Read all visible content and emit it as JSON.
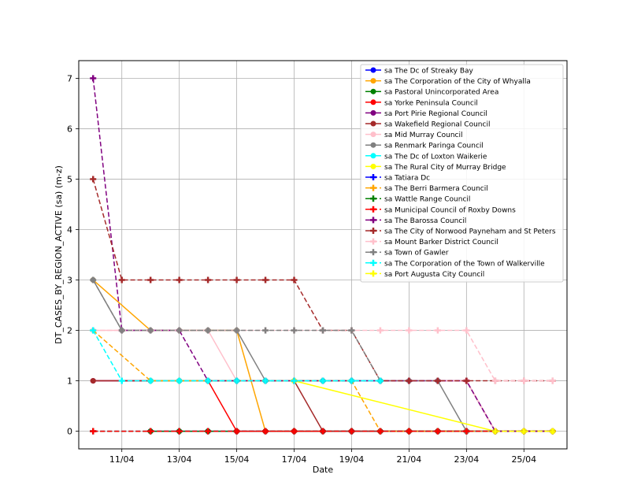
{
  "chart_data": {
    "type": "line",
    "xlabel": "Date",
    "ylabel": "DT_CASES_BY_REGION_ACTIVE (sa) (m-z)",
    "grid": true,
    "legend_position": "top-right",
    "x_range": [
      "2020-04-09T12:00",
      "2020-04-26T12:00"
    ],
    "y_range": [
      -0.35,
      7.35
    ],
    "x_ticks": [
      {
        "date": "2020-04-11",
        "label": "11/04"
      },
      {
        "date": "2020-04-13",
        "label": "13/04"
      },
      {
        "date": "2020-04-15",
        "label": "15/04"
      },
      {
        "date": "2020-04-17",
        "label": "17/04"
      },
      {
        "date": "2020-04-19",
        "label": "19/04"
      },
      {
        "date": "2020-04-21",
        "label": "21/04"
      },
      {
        "date": "2020-04-23",
        "label": "23/04"
      },
      {
        "date": "2020-04-25",
        "label": "25/04"
      }
    ],
    "y_ticks": [
      0,
      1,
      2,
      3,
      4,
      5,
      6,
      7
    ],
    "series": [
      {
        "name": "sa The Dc of Streaky Bay",
        "color": "#0000ff",
        "dash": false,
        "marker": "circle",
        "x": [
          "2020-04-12",
          "2020-04-13",
          "2020-04-14",
          "2020-04-15",
          "2020-04-16",
          "2020-04-17",
          "2020-04-18",
          "2020-04-19",
          "2020-04-20",
          "2020-04-21",
          "2020-04-22",
          "2020-04-23",
          "2020-04-24",
          "2020-04-25",
          "2020-04-26"
        ],
        "y": [
          0,
          0,
          0,
          0,
          0,
          0,
          0,
          0,
          0,
          0,
          0,
          0,
          0,
          0,
          0
        ]
      },
      {
        "name": "sa The Corporation of the City of Whyalla",
        "color": "#ffa500",
        "dash": false,
        "marker": "circle",
        "x": [
          "2020-04-10",
          "2020-04-12",
          "2020-04-13",
          "2020-04-14",
          "2020-04-15",
          "2020-04-16",
          "2020-04-17",
          "2020-04-18",
          "2020-04-19",
          "2020-04-20",
          "2020-04-21",
          "2020-04-22",
          "2020-04-23",
          "2020-04-24",
          "2020-04-25",
          "2020-04-26"
        ],
        "y": [
          3,
          2,
          2,
          2,
          2,
          0,
          0,
          0,
          0,
          0,
          0,
          0,
          0,
          0,
          0,
          0
        ]
      },
      {
        "name": "sa Pastoral Unincorporated Area",
        "color": "#008000",
        "dash": false,
        "marker": "circle",
        "x": [
          "2020-04-12",
          "2020-04-13",
          "2020-04-14",
          "2020-04-15",
          "2020-04-16",
          "2020-04-17",
          "2020-04-18",
          "2020-04-19",
          "2020-04-20",
          "2020-04-21",
          "2020-04-22",
          "2020-04-23",
          "2020-04-24",
          "2020-04-25",
          "2020-04-26"
        ],
        "y": [
          0,
          0,
          0,
          0,
          0,
          0,
          0,
          0,
          0,
          0,
          0,
          0,
          0,
          0,
          0
        ]
      },
      {
        "name": "sa Yorke Peninsula Council",
        "color": "#ff0000",
        "dash": false,
        "marker": "circle",
        "x": [
          "2020-04-10",
          "2020-04-12",
          "2020-04-13",
          "2020-04-14",
          "2020-04-15",
          "2020-04-16",
          "2020-04-17",
          "2020-04-18",
          "2020-04-19",
          "2020-04-20",
          "2020-04-21",
          "2020-04-22",
          "2020-04-23",
          "2020-04-24",
          "2020-04-25",
          "2020-04-26"
        ],
        "y": [
          1,
          1,
          1,
          1,
          0,
          0,
          0,
          0,
          0,
          0,
          0,
          0,
          0,
          0,
          0,
          0
        ]
      },
      {
        "name": "sa Port Pirie Regional Council",
        "color": "#800080",
        "dash": false,
        "marker": "circle",
        "x": [
          "2020-04-10",
          "2020-04-12",
          "2020-04-13",
          "2020-04-14",
          "2020-04-15",
          "2020-04-16",
          "2020-04-17",
          "2020-04-18",
          "2020-04-19",
          "2020-04-20",
          "2020-04-21",
          "2020-04-22",
          "2020-04-23",
          "2020-04-24",
          "2020-04-25",
          "2020-04-26"
        ],
        "y": [
          1,
          1,
          1,
          1,
          1,
          1,
          1,
          1,
          1,
          1,
          1,
          1,
          1,
          0,
          0,
          0
        ]
      },
      {
        "name": "sa Wakefield Regional Council",
        "color": "#a52a2a",
        "dash": false,
        "marker": "circle",
        "x": [
          "2020-04-10",
          "2020-04-12",
          "2020-04-13",
          "2020-04-14",
          "2020-04-15",
          "2020-04-16",
          "2020-04-17",
          "2020-04-18",
          "2020-04-19",
          "2020-04-20",
          "2020-04-21",
          "2020-04-22",
          "2020-04-23",
          "2020-04-24",
          "2020-04-25",
          "2020-04-26"
        ],
        "y": [
          1,
          1,
          1,
          1,
          1,
          1,
          1,
          0,
          0,
          0,
          0,
          0,
          0,
          0,
          0,
          0
        ]
      },
      {
        "name": "sa Mid Murray Council",
        "color": "#ffc0cb",
        "dash": false,
        "marker": "circle",
        "x": [
          "2020-04-10",
          "2020-04-12",
          "2020-04-13",
          "2020-04-14",
          "2020-04-15",
          "2020-04-16",
          "2020-04-17",
          "2020-04-18",
          "2020-04-19",
          "2020-04-20",
          "2020-04-21",
          "2020-04-22",
          "2020-04-23",
          "2020-04-24",
          "2020-04-25",
          "2020-04-26"
        ],
        "y": [
          2,
          2,
          2,
          2,
          1,
          1,
          1,
          1,
          1,
          1,
          1,
          1,
          1,
          0,
          0,
          0
        ]
      },
      {
        "name": "sa Renmark Paringa Council",
        "color": "#808080",
        "dash": false,
        "marker": "circle",
        "x": [
          "2020-04-10",
          "2020-04-11",
          "2020-04-12",
          "2020-04-13",
          "2020-04-14",
          "2020-04-15",
          "2020-04-16",
          "2020-04-17",
          "2020-04-18",
          "2020-04-19",
          "2020-04-20",
          "2020-04-21",
          "2020-04-22",
          "2020-04-23",
          "2020-04-24",
          "2020-04-25",
          "2020-04-26"
        ],
        "y": [
          3,
          2,
          2,
          2,
          2,
          2,
          1,
          1,
          1,
          1,
          1,
          1,
          1,
          0,
          0,
          0,
          0
        ]
      },
      {
        "name": "sa The Dc of Loxton Waikerie",
        "color": "#00ffff",
        "dash": false,
        "marker": "circle",
        "x": [
          "2020-04-12",
          "2020-04-13",
          "2020-04-14",
          "2020-04-15",
          "2020-04-16",
          "2020-04-17",
          "2020-04-18",
          "2020-04-19",
          "2020-04-20"
        ],
        "y": [
          1,
          1,
          1,
          1,
          1,
          1,
          1,
          1,
          1
        ]
      },
      {
        "name": "sa The Rural City of Murray Bridge",
        "color": "#ffff00",
        "dash": false,
        "marker": "circle",
        "x": [
          "2020-04-17",
          "2020-04-24",
          "2020-04-25",
          "2020-04-26"
        ],
        "y": [
          1,
          0,
          0,
          0
        ]
      },
      {
        "name": "sa Tatiara Dc",
        "color": "#0000ff",
        "dash": true,
        "marker": "plus",
        "x": [
          "2020-04-10",
          "2020-04-12",
          "2020-04-13",
          "2020-04-14",
          "2020-04-15",
          "2020-04-16",
          "2020-04-17",
          "2020-04-18",
          "2020-04-19",
          "2020-04-20",
          "2020-04-21",
          "2020-04-22",
          "2020-04-23",
          "2020-04-24",
          "2020-04-25",
          "2020-04-26"
        ],
        "y": [
          0,
          0,
          0,
          0,
          0,
          0,
          0,
          0,
          0,
          0,
          0,
          0,
          0,
          0,
          0,
          0
        ]
      },
      {
        "name": "sa The Berri Barmera Council",
        "color": "#ffa500",
        "dash": true,
        "marker": "plus",
        "x": [
          "2020-04-10",
          "2020-04-12",
          "2020-04-13",
          "2020-04-14",
          "2020-04-15",
          "2020-04-16",
          "2020-04-17",
          "2020-04-18",
          "2020-04-19",
          "2020-04-20",
          "2020-04-21",
          "2020-04-22",
          "2020-04-23",
          "2020-04-24",
          "2020-04-25",
          "2020-04-26"
        ],
        "y": [
          2,
          1,
          1,
          1,
          1,
          1,
          1,
          1,
          1,
          0,
          0,
          0,
          0,
          0,
          0,
          0
        ]
      },
      {
        "name": "sa Wattle Range Council",
        "color": "#008000",
        "dash": true,
        "marker": "plus",
        "x": [
          "2020-04-10",
          "2020-04-12",
          "2020-04-13",
          "2020-04-14",
          "2020-04-15",
          "2020-04-16",
          "2020-04-17",
          "2020-04-18",
          "2020-04-19",
          "2020-04-20",
          "2020-04-21",
          "2020-04-22",
          "2020-04-23",
          "2020-04-24",
          "2020-04-25",
          "2020-04-26"
        ],
        "y": [
          0,
          0,
          0,
          0,
          0,
          0,
          0,
          0,
          0,
          0,
          0,
          0,
          0,
          0,
          0,
          0
        ]
      },
      {
        "name": "sa Municipal Council of Roxby Downs",
        "color": "#ff0000",
        "dash": true,
        "marker": "plus",
        "x": [
          "2020-04-10",
          "2020-04-12",
          "2020-04-13",
          "2020-04-14",
          "2020-04-15",
          "2020-04-16",
          "2020-04-17",
          "2020-04-18",
          "2020-04-19",
          "2020-04-20",
          "2020-04-21",
          "2020-04-22",
          "2020-04-23",
          "2020-04-24",
          "2020-04-25",
          "2020-04-26"
        ],
        "y": [
          0,
          0,
          0,
          0,
          0,
          0,
          0,
          0,
          0,
          0,
          0,
          0,
          0,
          0,
          0,
          0
        ]
      },
      {
        "name": "sa The Barossa Council",
        "color": "#800080",
        "dash": true,
        "marker": "plus",
        "x": [
          "2020-04-10",
          "2020-04-11",
          "2020-04-12",
          "2020-04-13",
          "2020-04-14",
          "2020-04-15",
          "2020-04-16",
          "2020-04-17",
          "2020-04-18",
          "2020-04-19",
          "2020-04-20",
          "2020-04-21",
          "2020-04-22",
          "2020-04-23",
          "2020-04-24",
          "2020-04-25",
          "2020-04-26"
        ],
        "y": [
          7,
          2,
          2,
          2,
          1,
          1,
          1,
          1,
          1,
          1,
          1,
          1,
          1,
          1,
          0,
          0,
          0
        ]
      },
      {
        "name": "sa The City of Norwood Payneham and St Peters",
        "color": "#a52a2a",
        "dash": true,
        "marker": "plus",
        "x": [
          "2020-04-10",
          "2020-04-11",
          "2020-04-12",
          "2020-04-13",
          "2020-04-14",
          "2020-04-15",
          "2020-04-16",
          "2020-04-17",
          "2020-04-18",
          "2020-04-19",
          "2020-04-20",
          "2020-04-21",
          "2020-04-22",
          "2020-04-23",
          "2020-04-24",
          "2020-04-25",
          "2020-04-26"
        ],
        "y": [
          5,
          3,
          3,
          3,
          3,
          3,
          3,
          3,
          2,
          2,
          1,
          1,
          1,
          1,
          1,
          1,
          1
        ]
      },
      {
        "name": "sa Mount Barker District Council",
        "color": "#ffc0cb",
        "dash": true,
        "marker": "plus",
        "x": [
          "2020-04-10",
          "2020-04-11",
          "2020-04-12",
          "2020-04-13",
          "2020-04-14",
          "2020-04-15",
          "2020-04-16",
          "2020-04-17",
          "2020-04-18",
          "2020-04-19",
          "2020-04-20",
          "2020-04-21",
          "2020-04-22",
          "2020-04-23",
          "2020-04-24",
          "2020-04-25",
          "2020-04-26"
        ],
        "y": [
          2,
          2,
          2,
          2,
          2,
          2,
          2,
          2,
          2,
          2,
          2,
          2,
          2,
          2,
          1,
          1,
          1
        ]
      },
      {
        "name": "sa Town of Gawler",
        "color": "#808080",
        "dash": true,
        "marker": "plus",
        "x": [
          "2020-04-10",
          "2020-04-11",
          "2020-04-12",
          "2020-04-13",
          "2020-04-14",
          "2020-04-15",
          "2020-04-16",
          "2020-04-17",
          "2020-04-18",
          "2020-04-19",
          "2020-04-20"
        ],
        "y": [
          3,
          2,
          2,
          2,
          2,
          2,
          2,
          2,
          2,
          2,
          1
        ]
      },
      {
        "name": "sa The Corporation of the Town of Walkerville",
        "color": "#00ffff",
        "dash": true,
        "marker": "plus",
        "x": [
          "2020-04-10",
          "2020-04-11",
          "2020-04-12",
          "2020-04-13",
          "2020-04-14",
          "2020-04-15",
          "2020-04-16",
          "2020-04-17",
          "2020-04-18",
          "2020-04-19",
          "2020-04-20"
        ],
        "y": [
          2,
          1,
          1,
          1,
          1,
          1,
          1,
          1,
          1,
          1,
          1
        ]
      },
      {
        "name": "sa Port Augusta City Council",
        "color": "#ffff00",
        "dash": true,
        "marker": "plus",
        "x": [
          "2020-04-24",
          "2020-04-25",
          "2020-04-26"
        ],
        "y": [
          0,
          0,
          0
        ]
      }
    ]
  }
}
